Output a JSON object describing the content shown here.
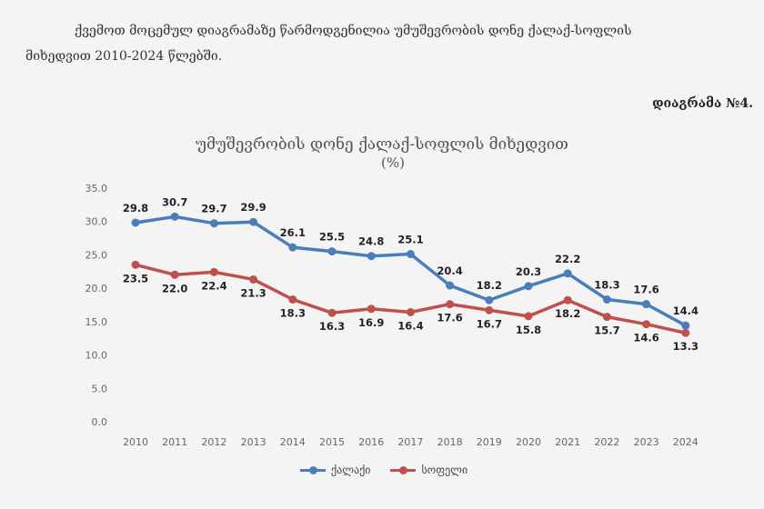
{
  "intro_line1": "ქვემოთ მოცემულ დიაგრამაზე წარმოდგენილია უმუშევრობის დონე ქალაქ-სოფლის",
  "intro_line2": "მიხედვით 2010-2024 წლებში.",
  "diagram_number": "დიაგრამა №4.",
  "chart_data": {
    "type": "line",
    "title": "უმუშევრობის დონე ქალაქ-სოფლის მიხედვით",
    "subtitle": "(%)",
    "categories": [
      "2010",
      "2011",
      "2012",
      "2013",
      "2014",
      "2015",
      "2016",
      "2017",
      "2018",
      "2019",
      "2020",
      "2021",
      "2022",
      "2023",
      "2024"
    ],
    "series": [
      {
        "name": "ქალაქი",
        "color": "#4a7ebb",
        "values": [
          29.8,
          30.7,
          29.7,
          29.9,
          26.1,
          25.5,
          24.8,
          25.1,
          20.4,
          18.2,
          20.3,
          22.2,
          18.3,
          17.6,
          14.4
        ]
      },
      {
        "name": "სოფელი",
        "color": "#c0504d",
        "values": [
          23.5,
          22.0,
          22.4,
          21.3,
          18.3,
          16.3,
          16.9,
          16.4,
          17.6,
          16.7,
          15.8,
          18.2,
          15.7,
          14.6,
          13.3
        ]
      }
    ],
    "yticks": [
      "0.0",
      "5.0",
      "10.0",
      "15.0",
      "20.0",
      "25.0",
      "30.0",
      "35.0"
    ],
    "ylim": [
      0,
      35
    ],
    "grid": false,
    "legend_position": "bottom"
  }
}
